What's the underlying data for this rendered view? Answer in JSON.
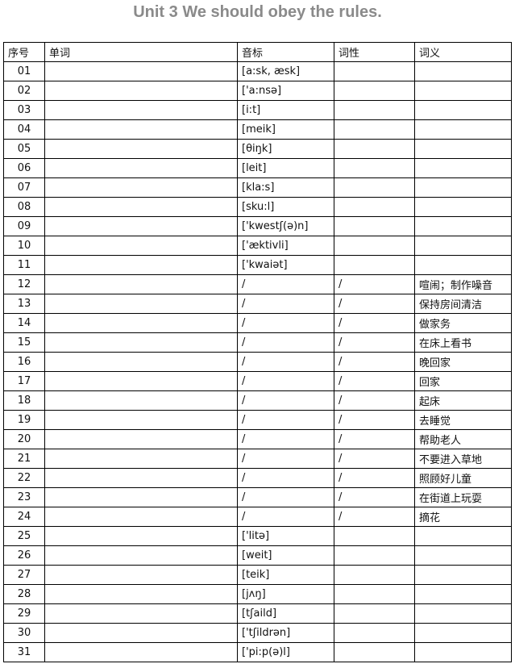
{
  "title": "Unit 3 We should obey the rules.",
  "headers": [
    "序号",
    "单词",
    "音标",
    "词性",
    "词义"
  ],
  "rows": [
    [
      "01",
      "",
      "[a:sk, æsk]",
      "",
      ""
    ],
    [
      "02",
      "",
      "['a:nsə]",
      "",
      ""
    ],
    [
      "03",
      "",
      "[i:t]",
      "",
      ""
    ],
    [
      "04",
      "",
      "[meik]",
      "",
      ""
    ],
    [
      "05",
      "",
      "[θiŋk]",
      "",
      ""
    ],
    [
      "06",
      "",
      "[leit]",
      "",
      ""
    ],
    [
      "07",
      "",
      "[kla:s]",
      "",
      ""
    ],
    [
      "08",
      "",
      "[sku:l]",
      "",
      ""
    ],
    [
      "09",
      "",
      "['kwestʃ(ə)n]",
      "",
      ""
    ],
    [
      "10",
      "",
      "['æktivli]",
      "",
      ""
    ],
    [
      "11",
      "",
      "['kwaiət]",
      "",
      ""
    ],
    [
      "12",
      "",
      "/",
      "/",
      "喧闹；制作噪音"
    ],
    [
      "13",
      "",
      "/",
      "/",
      "保持房间清洁"
    ],
    [
      "14",
      "",
      "/",
      "/",
      "做家务"
    ],
    [
      "15",
      "",
      "/",
      "/",
      "在床上看书"
    ],
    [
      "16",
      "",
      "/",
      "/",
      "晚回家"
    ],
    [
      "17",
      "",
      "/",
      "/",
      "回家"
    ],
    [
      "18",
      "",
      "/",
      "/",
      "起床"
    ],
    [
      "19",
      "",
      "/",
      "/",
      "去睡觉"
    ],
    [
      "20",
      "",
      "/",
      "/",
      "帮助老人"
    ],
    [
      "21",
      "",
      "/",
      "/",
      "不要进入草地"
    ],
    [
      "22",
      "",
      "/",
      "/",
      "照顾好儿童"
    ],
    [
      "23",
      "",
      "/",
      "/",
      "在街道上玩耍"
    ],
    [
      "24",
      "",
      "/",
      "/",
      "摘花"
    ],
    [
      "25",
      "",
      "['litə]",
      "",
      ""
    ],
    [
      "26",
      "",
      "[weit]",
      "",
      ""
    ],
    [
      "27",
      "",
      "[teik]",
      "",
      ""
    ],
    [
      "28",
      "",
      "[jʌŋ]",
      "",
      ""
    ],
    [
      "29",
      "",
      "[tʃaild]",
      "",
      ""
    ],
    [
      "30",
      "",
      "['tʃildrən]",
      "",
      ""
    ],
    [
      "31",
      "",
      "['pi:p(ə)l]",
      "",
      ""
    ]
  ]
}
